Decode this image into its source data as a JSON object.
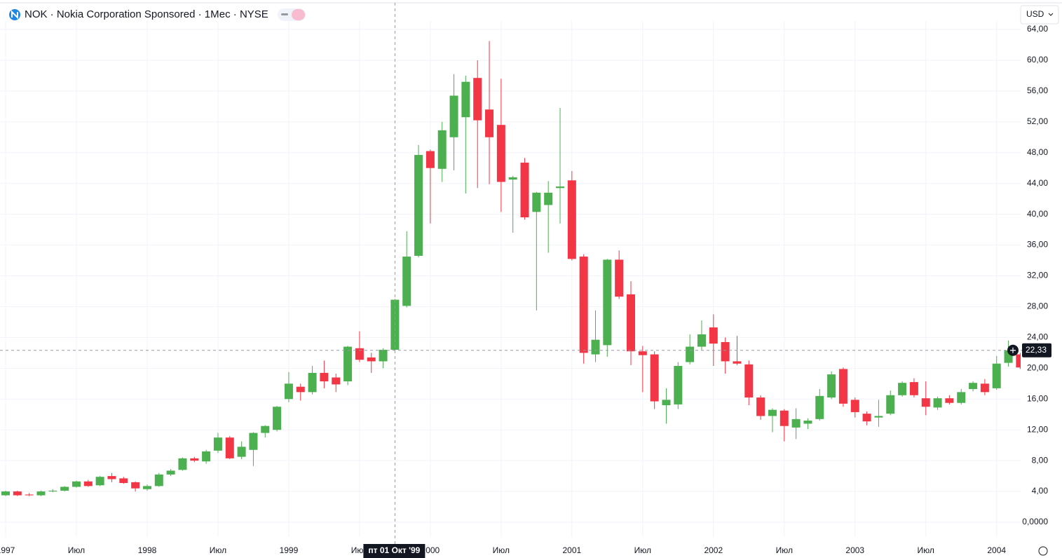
{
  "chart_data": {
    "type": "candlestick",
    "title": "NOK · Nokia Corporation Sponsored · 1Мес · NYSE",
    "currency": "USD",
    "up_color": "#4caf50",
    "down_color": "#f23645",
    "grid": true,
    "x": [
      "1997-01",
      "1997-02",
      "1997-03",
      "1997-04",
      "1997-05",
      "1997-06",
      "1997-07",
      "1997-08",
      "1997-09",
      "1997-10",
      "1997-11",
      "1997-12",
      "1998-01",
      "1998-02",
      "1998-03",
      "1998-04",
      "1998-05",
      "1998-06",
      "1998-07",
      "1998-08",
      "1998-09",
      "1998-10",
      "1998-11",
      "1998-12",
      "1999-01",
      "1999-02",
      "1999-03",
      "1999-04",
      "1999-05",
      "1999-06",
      "1999-07",
      "1999-08",
      "1999-09",
      "1999-10",
      "1999-11",
      "1999-12",
      "2000-01",
      "2000-02",
      "2000-03",
      "2000-04",
      "2000-05",
      "2000-06",
      "2000-07",
      "2000-08",
      "2000-09",
      "2000-10",
      "2000-11",
      "2000-12",
      "2001-01",
      "2001-02",
      "2001-03",
      "2001-04",
      "2001-05",
      "2001-06",
      "2001-07",
      "2001-08",
      "2001-09",
      "2001-10",
      "2001-11",
      "2001-12",
      "2002-01",
      "2002-02",
      "2002-03",
      "2002-04",
      "2002-05",
      "2002-06",
      "2002-07",
      "2002-08",
      "2002-09",
      "2002-10",
      "2002-11",
      "2002-12",
      "2003-01",
      "2003-02",
      "2003-03",
      "2003-04",
      "2003-05",
      "2003-06",
      "2003-07",
      "2003-08",
      "2003-09",
      "2003-10",
      "2003-11",
      "2003-12",
      "2004-01",
      "2004-02",
      "2004-03"
    ],
    "open": [
      3.5,
      4.0,
      3.6,
      3.5,
      4.0,
      4.1,
      4.6,
      5.3,
      4.8,
      6.0,
      5.7,
      5.2,
      4.3,
      4.7,
      6.2,
      6.8,
      8.3,
      7.9,
      9.3,
      11.0,
      8.5,
      9.4,
      11.6,
      12.0,
      16.0,
      17.6,
      16.9,
      19.4,
      18.8,
      18.3,
      22.6,
      21.4,
      20.9,
      22.4,
      28.1,
      34.6,
      48.2,
      45.9,
      50.0,
      52.6,
      57.7,
      53.6,
      51.6,
      44.5,
      46.7,
      40.3,
      41.2,
      43.4,
      44.4,
      34.5,
      21.8,
      23.0,
      34.1,
      29.6,
      22.2,
      21.8,
      15.2,
      15.3,
      20.8,
      22.8,
      25.3,
      23.4,
      20.9,
      20.5,
      16.2,
      13.8,
      14.5,
      12.3,
      12.8,
      13.4,
      16.2,
      19.9,
      15.9,
      14.1,
      13.6,
      14.1,
      16.5,
      18.2,
      16.1,
      14.9,
      16.1,
      15.5,
      17.3,
      18.0,
      17.4,
      20.7,
      21.8
    ],
    "high": [
      4.1,
      4.1,
      3.8,
      4.1,
      4.3,
      4.7,
      5.4,
      5.5,
      6.0,
      6.4,
      5.9,
      5.3,
      4.9,
      6.4,
      6.9,
      8.4,
      8.5,
      9.4,
      11.6,
      11.2,
      10.5,
      11.7,
      12.6,
      15.1,
      19.5,
      18.0,
      20.3,
      21.0,
      19.3,
      22.9,
      24.8,
      22.0,
      22.6,
      29.0,
      37.8,
      49.0,
      48.4,
      52.0,
      58.2,
      58.0,
      60.0,
      62.5,
      57.6,
      45.0,
      47.3,
      42.9,
      44.3,
      53.8,
      45.6,
      34.8,
      27.5,
      34.2,
      35.3,
      31.3,
      22.9,
      22.2,
      17.4,
      20.8,
      24.4,
      26.2,
      27.0,
      24.0,
      24.2,
      21.0,
      16.5,
      14.8,
      14.7,
      14.8,
      13.5,
      17.3,
      19.6,
      20.1,
      16.2,
      14.4,
      15.9,
      17.1,
      18.3,
      18.7,
      18.3,
      16.3,
      16.5,
      17.3,
      18.3,
      18.6,
      21.6,
      23.6,
      22.0
    ],
    "low": [
      3.4,
      3.4,
      3.4,
      3.4,
      3.9,
      4.0,
      4.5,
      4.6,
      4.7,
      5.2,
      5.0,
      4.0,
      4.1,
      4.6,
      6.0,
      6.7,
      7.8,
      7.6,
      9.0,
      8.2,
      8.2,
      7.3,
      11.0,
      11.8,
      15.6,
      15.8,
      16.6,
      17.4,
      16.9,
      17.8,
      20.8,
      19.4,
      20.0,
      22.2,
      27.9,
      34.4,
      38.8,
      44.2,
      45.7,
      42.7,
      43.4,
      43.9,
      40.3,
      37.6,
      39.3,
      27.5,
      35.0,
      38.8,
      34.0,
      20.6,
      20.8,
      21.5,
      29.0,
      20.4,
      16.9,
      14.7,
      12.8,
      14.7,
      20.5,
      22.4,
      20.3,
      19.3,
      20.4,
      15.2,
      13.3,
      11.7,
      10.5,
      10.8,
      12.1,
      13.2,
      16.0,
      15.0,
      13.6,
      12.6,
      12.4,
      13.9,
      16.3,
      16.2,
      13.9,
      14.6,
      15.3,
      15.3,
      17.0,
      16.5,
      17.2,
      20.2,
      19.9
    ],
    "close": [
      4.0,
      3.5,
      3.5,
      4.0,
      4.1,
      4.6,
      5.3,
      4.7,
      5.9,
      5.6,
      5.1,
      4.4,
      4.7,
      6.2,
      6.7,
      8.3,
      8.0,
      9.2,
      11.0,
      8.3,
      9.8,
      11.6,
      12.5,
      15.0,
      18.0,
      16.9,
      19.4,
      18.3,
      17.9,
      22.8,
      21.1,
      20.9,
      22.4,
      28.9,
      34.5,
      47.7,
      46.0,
      50.9,
      55.4,
      57.2,
      52.2,
      50.0,
      44.2,
      44.8,
      39.6,
      42.8,
      42.8,
      43.6,
      34.2,
      22.0,
      23.7,
      34.1,
      29.3,
      22.2,
      21.7,
      15.7,
      15.9,
      20.3,
      22.8,
      24.4,
      23.2,
      20.9,
      20.6,
      16.2,
      13.8,
      14.6,
      12.5,
      13.4,
      13.2,
      16.4,
      19.2,
      15.4,
      14.3,
      13.1,
      13.8,
      16.5,
      18.1,
      16.5,
      15.0,
      16.1,
      15.5,
      16.9,
      18.1,
      16.9,
      20.6,
      22.3,
      20.1
    ],
    "ylim": [
      0,
      64
    ],
    "yticks": [
      {
        "value": 0,
        "label": "0,0000"
      },
      {
        "value": 4,
        "label": "4,00"
      },
      {
        "value": 8,
        "label": "8,00"
      },
      {
        "value": 12,
        "label": "12,00"
      },
      {
        "value": 16,
        "label": "16,00"
      },
      {
        "value": 20,
        "label": "20,00"
      },
      {
        "value": 24,
        "label": "24,00"
      },
      {
        "value": 28,
        "label": "28,00"
      },
      {
        "value": 32,
        "label": "32,00"
      },
      {
        "value": 36,
        "label": "36,00"
      },
      {
        "value": 40,
        "label": "40,00"
      },
      {
        "value": 44,
        "label": "44,00"
      },
      {
        "value": 48,
        "label": "48,00"
      },
      {
        "value": 52,
        "label": "52,00"
      },
      {
        "value": 56,
        "label": "56,00"
      },
      {
        "value": 60,
        "label": "60,00"
      },
      {
        "value": 64,
        "label": "64,00"
      }
    ],
    "xticks": [
      {
        "value": "1997-01",
        "label": "1997"
      },
      {
        "value": "1997-07",
        "label": "Июл"
      },
      {
        "value": "1998-01",
        "label": "1998"
      },
      {
        "value": "1998-07",
        "label": "Июл"
      },
      {
        "value": "1999-01",
        "label": "1999"
      },
      {
        "value": "1999-07",
        "label": "Июл"
      },
      {
        "value": "2000-01",
        "label": "2000"
      },
      {
        "value": "2000-07",
        "label": "Июл"
      },
      {
        "value": "2001-01",
        "label": "2001"
      },
      {
        "value": "2001-07",
        "label": "Июл"
      },
      {
        "value": "2002-01",
        "label": "2002"
      },
      {
        "value": "2002-07",
        "label": "Июл"
      },
      {
        "value": "2003-01",
        "label": "2003"
      },
      {
        "value": "2003-07",
        "label": "Июл"
      },
      {
        "value": "2004-01",
        "label": "2004"
      }
    ],
    "crosshair": {
      "x": {
        "value": "1999-10",
        "label": "пт 01 Окт '99"
      },
      "y": {
        "value": 22.33,
        "label": "22,33"
      }
    }
  }
}
